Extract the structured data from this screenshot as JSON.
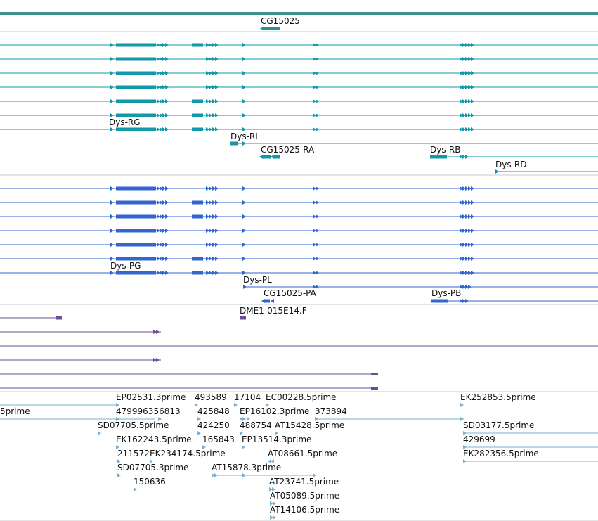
{
  "colors": {
    "top_bar": "#3a8f8f",
    "gene": "#2a8f93",
    "transcript": "#1199aa",
    "protein": "#3366cc",
    "oligo": "#6b4c9a",
    "est": "#7ab2d6",
    "separator": "#c8c8c8",
    "text": "#111111"
  },
  "gene_track": {
    "label": "CG15025"
  },
  "transcript_track": {
    "labels": [
      "Dys-RG",
      "Dys-RL",
      "CG15025-RA",
      "Dys-RB",
      "Dys-RD"
    ]
  },
  "protein_track": {
    "labels": [
      "Dys-PG",
      "Dys-PL",
      "CG15025-PA",
      "Dys-PB"
    ]
  },
  "oligo_track": {
    "labels": [
      "DME1-015E14.F"
    ]
  },
  "est_track": {
    "labels": [
      "EP02531.3prime",
      "493589",
      "17104",
      "EC00228.5prime",
      "EK252853.5prime",
      "5prime",
      "479996356813",
      "425848",
      "EP16102.3prime",
      "373894",
      "SD07705.5prime",
      "424250",
      "488754",
      "AT15428.5prime",
      "SD03177.5prime",
      "EK162243.5prime",
      "165843",
      "EP13514.3prime",
      "429699",
      "211572",
      "EK234174.5prime",
      "AT08661.5prime",
      "EK282356.5prime",
      "SD07705.3prime",
      "AT15878.3prime",
      "150636",
      "AT23741.5prime",
      "AT05089.5prime",
      "AT14106.5prime"
    ]
  }
}
